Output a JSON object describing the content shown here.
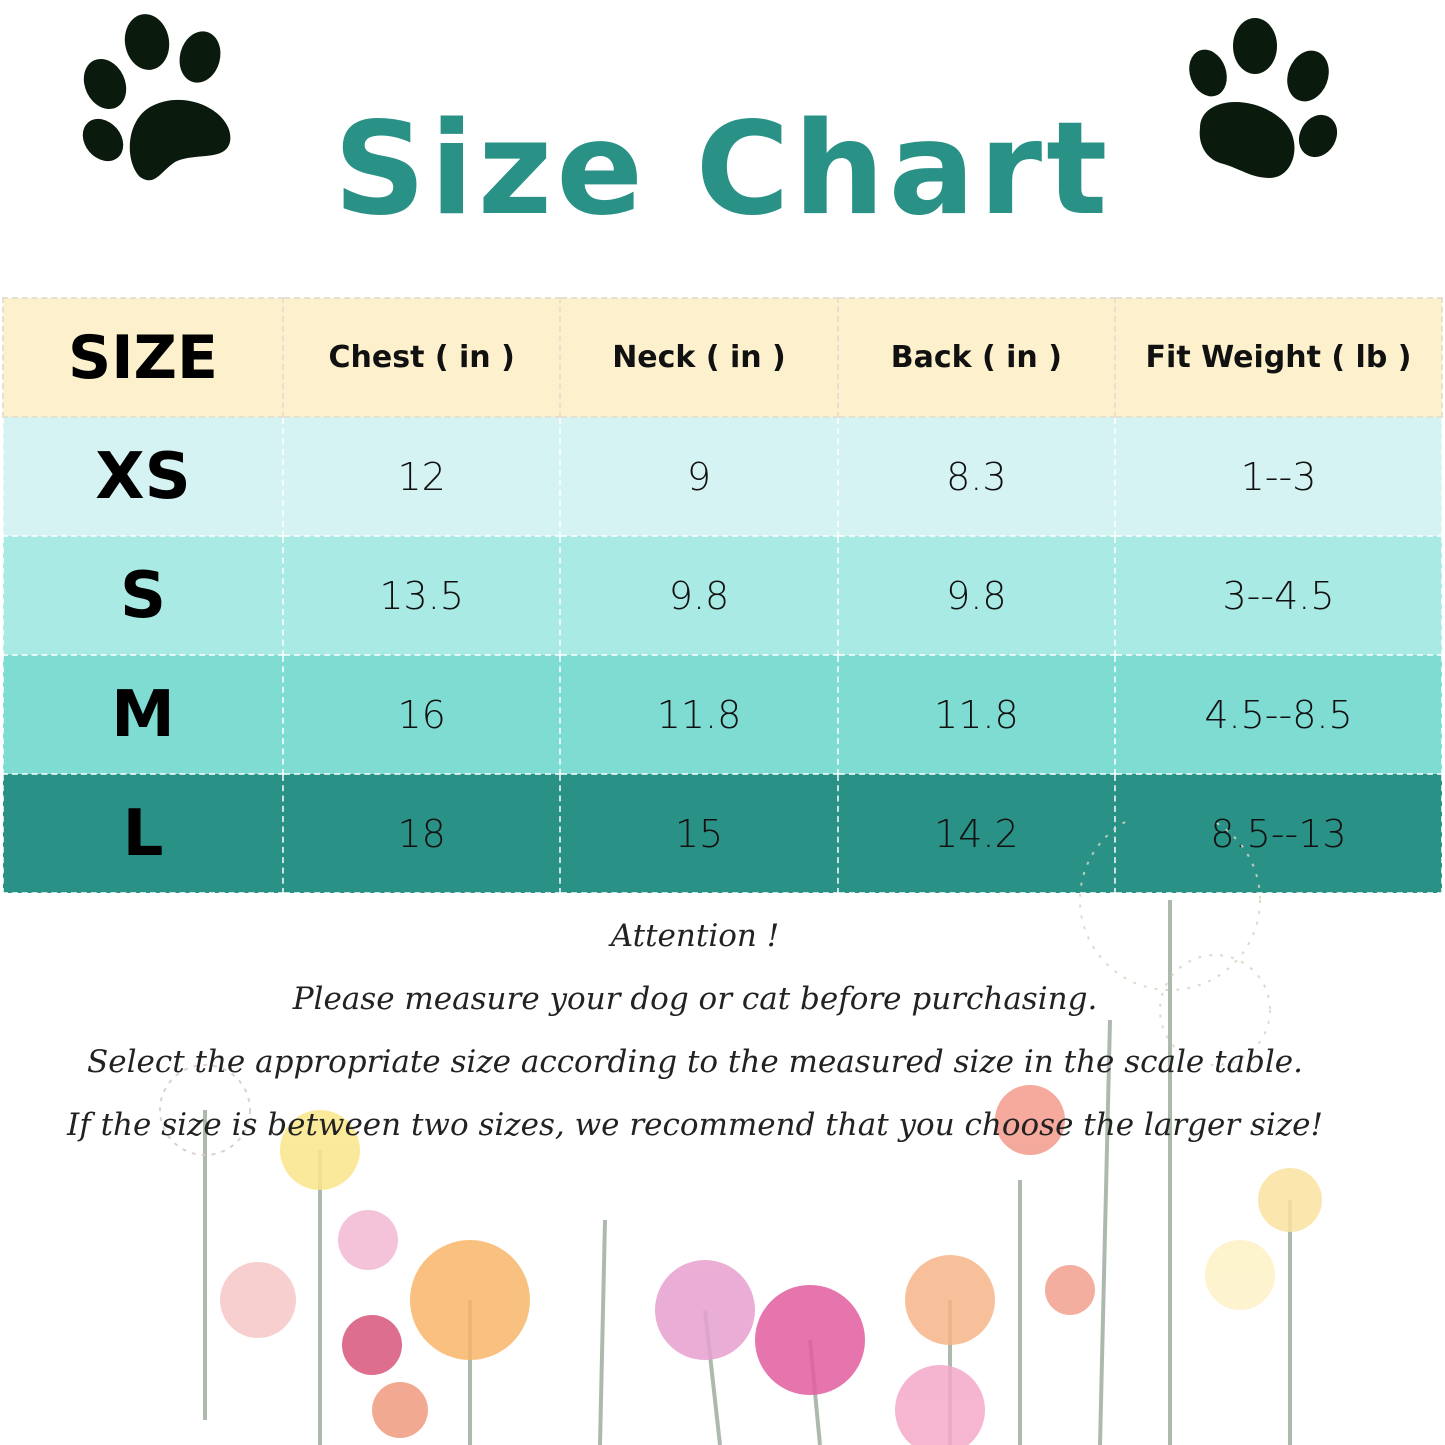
{
  "title": "Size Chart",
  "table": {
    "headers": [
      "SIZE",
      "Chest ( in )",
      "Neck ( in )",
      "Back ( in )",
      "Fit  Weight ( lb )"
    ],
    "rows": [
      {
        "size": "XS",
        "chest": "12",
        "neck": "9",
        "back": "8.3",
        "weight": "1--3"
      },
      {
        "size": "S",
        "chest": "13.5",
        "neck": "9.8",
        "back": "9.8",
        "weight": "3--4.5"
      },
      {
        "size": "M",
        "chest": "16",
        "neck": "11.8",
        "back": "11.8",
        "weight": "4.5--8.5"
      },
      {
        "size": "L",
        "chest": "18",
        "neck": "15",
        "back": "14.2",
        "weight": "8.5--13"
      }
    ]
  },
  "notes": [
    "Attention !",
    "Please measure your dog or cat before purchasing.",
    "Select the appropriate size according to the measured size in the scale table.",
    "If the size is between two sizes, we recommend that you choose the larger size!"
  ],
  "colors": {
    "title": "#2a9186",
    "header_row": "#fdf0cc",
    "row_xs": "#d4f3f2",
    "row_s": "#a9ebe4",
    "row_m": "#7fdcd3",
    "row_l": "#2a9186"
  },
  "icons": [
    "paw-print-icon",
    "paw-print-icon"
  ]
}
